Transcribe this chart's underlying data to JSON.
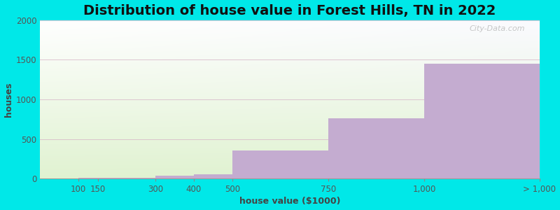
{
  "title": "Distribution of house value in Forest Hills, TN in 2022",
  "xlabel": "house value ($1000)",
  "ylabel": "houses",
  "tick_positions": [
    100,
    150,
    300,
    400,
    500,
    750,
    1000,
    1300
  ],
  "tick_labels": [
    "100",
    "150",
    "300",
    "400",
    "500",
    "750",
    "1,000",
    "> 1,000"
  ],
  "bar_lefts": [
    100,
    150,
    300,
    400,
    500,
    750,
    1000
  ],
  "bar_rights": [
    150,
    300,
    400,
    500,
    750,
    1000,
    1300
  ],
  "values": [
    10,
    10,
    40,
    55,
    360,
    760,
    1450
  ],
  "bar_color": "#c4acd0",
  "grad_color_top": "#dff0d0",
  "grad_color_bottom": "#f5f5ff",
  "outer_bg": "#00e8e8",
  "ylim": [
    0,
    2000
  ],
  "xlim": [
    0,
    1300
  ],
  "yticks": [
    0,
    500,
    1000,
    1500,
    2000
  ],
  "title_fontsize": 14,
  "axis_label_fontsize": 9,
  "tick_fontsize": 8.5,
  "watermark": "City-Data.com"
}
